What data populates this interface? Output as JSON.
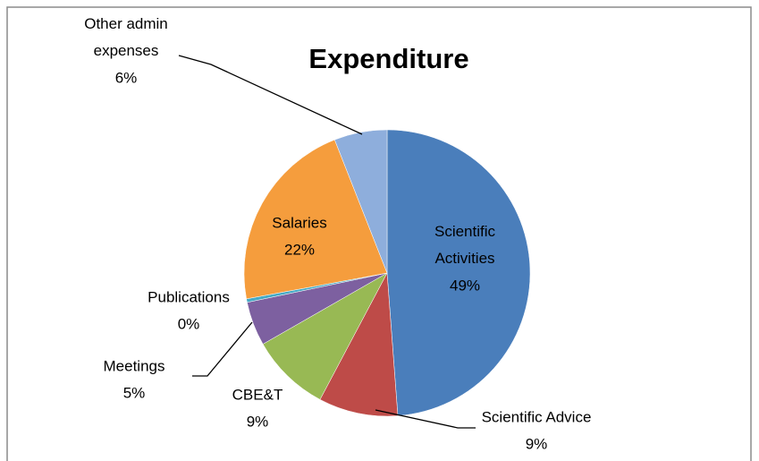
{
  "chart_data": {
    "type": "pie",
    "title": "Expenditure",
    "categories": [
      "Scientific Activities",
      "Scientific Advice",
      "CBE&T",
      "Meetings",
      "Publications",
      "Salaries",
      "Other admin expenses"
    ],
    "values": [
      49,
      9,
      9,
      5,
      0.4,
      22,
      6
    ],
    "value_labels": [
      "49%",
      "9%",
      "9%",
      "5%",
      "0%",
      "22%",
      "6%"
    ],
    "colors": [
      "#4a7ebb",
      "#be4b48",
      "#98b954",
      "#7d60a0",
      "#46aac5",
      "#f59d3d",
      "#8eaedc"
    ]
  }
}
